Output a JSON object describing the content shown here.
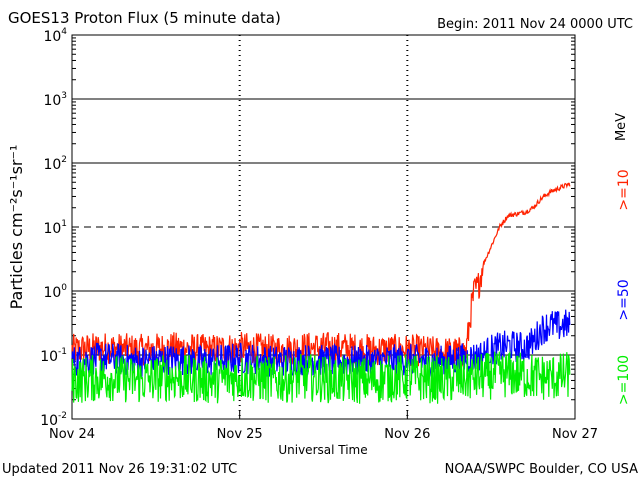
{
  "header": {
    "title": "GOES13 Proton Flux (5 minute data)",
    "begin": "Begin: 2011 Nov 24 0000 UTC"
  },
  "footer": {
    "updated": "Updated 2011 Nov 26 19:31:02 UTC",
    "source": "NOAA/SWPC Boulder, CO USA"
  },
  "chart_data": {
    "type": "line",
    "title": "GOES13 Proton Flux (5 minute data)",
    "xlabel": "Universal Time",
    "ylabel": "Particles cm⁻²s⁻¹sr⁻¹",
    "yscale": "log",
    "ylim": [
      0.01,
      10000
    ],
    "xlim_days": [
      0,
      3
    ],
    "x_tick_labels": [
      "Nov 24",
      "Nov 25",
      "Nov 26",
      "Nov 27"
    ],
    "y_tick_labels": [
      {
        "base": "10",
        "exp": "-2"
      },
      {
        "base": "10",
        "exp": "-1"
      },
      {
        "base": "10",
        "exp": "0"
      },
      {
        "base": "10",
        "exp": "1"
      },
      {
        "base": "10",
        "exp": "2"
      },
      {
        "base": "10",
        "exp": "3"
      },
      {
        "base": "10",
        "exp": "4"
      }
    ],
    "unit_label": "MeV",
    "series": [
      {
        "name": ">=10",
        "color": "#ff2200",
        "points": [
          [
            0.0,
            0.12
          ],
          [
            0.2,
            0.13
          ],
          [
            0.4,
            0.12
          ],
          [
            0.6,
            0.13
          ],
          [
            0.8,
            0.12
          ],
          [
            1.0,
            0.13
          ],
          [
            1.2,
            0.12
          ],
          [
            1.4,
            0.13
          ],
          [
            1.6,
            0.13
          ],
          [
            1.8,
            0.12
          ],
          [
            2.0,
            0.12
          ],
          [
            2.2,
            0.11
          ],
          [
            2.35,
            0.11
          ],
          [
            2.38,
            0.5
          ],
          [
            2.4,
            1.0
          ],
          [
            2.42,
            1.1
          ],
          [
            2.45,
            2.5
          ],
          [
            2.5,
            5.0
          ],
          [
            2.55,
            10.0
          ],
          [
            2.6,
            15.0
          ],
          [
            2.65,
            16.0
          ],
          [
            2.7,
            17.0
          ],
          [
            2.75,
            20.0
          ],
          [
            2.8,
            28.0
          ],
          [
            2.85,
            35.0
          ],
          [
            2.9,
            40.0
          ],
          [
            2.95,
            45.0
          ],
          [
            2.97,
            47.0
          ]
        ]
      },
      {
        "name": ">=50",
        "color": "#0000ff",
        "points": [
          [
            0.0,
            0.08
          ],
          [
            0.2,
            0.09
          ],
          [
            0.4,
            0.08
          ],
          [
            0.6,
            0.085
          ],
          [
            0.8,
            0.08
          ],
          [
            1.0,
            0.09
          ],
          [
            1.2,
            0.08
          ],
          [
            1.4,
            0.085
          ],
          [
            1.6,
            0.08
          ],
          [
            1.8,
            0.08
          ],
          [
            2.0,
            0.085
          ],
          [
            2.2,
            0.08
          ],
          [
            2.38,
            0.09
          ],
          [
            2.45,
            0.1
          ],
          [
            2.5,
            0.12
          ],
          [
            2.6,
            0.14
          ],
          [
            2.7,
            0.13
          ],
          [
            2.75,
            0.16
          ],
          [
            2.8,
            0.25
          ],
          [
            2.85,
            0.3
          ],
          [
            2.9,
            0.28
          ],
          [
            2.95,
            0.3
          ],
          [
            2.97,
            0.28
          ]
        ]
      },
      {
        "name": ">=100",
        "color": "#00ee00",
        "points": [
          [
            0.0,
            0.04
          ],
          [
            0.2,
            0.045
          ],
          [
            0.4,
            0.04
          ],
          [
            0.6,
            0.045
          ],
          [
            0.8,
            0.04
          ],
          [
            1.0,
            0.045
          ],
          [
            1.2,
            0.04
          ],
          [
            1.4,
            0.045
          ],
          [
            1.6,
            0.04
          ],
          [
            1.8,
            0.04
          ],
          [
            2.0,
            0.045
          ],
          [
            2.2,
            0.04
          ],
          [
            2.4,
            0.045
          ],
          [
            2.6,
            0.05
          ],
          [
            2.8,
            0.045
          ],
          [
            2.9,
            0.045
          ],
          [
            2.97,
            0.05
          ]
        ]
      }
    ]
  }
}
